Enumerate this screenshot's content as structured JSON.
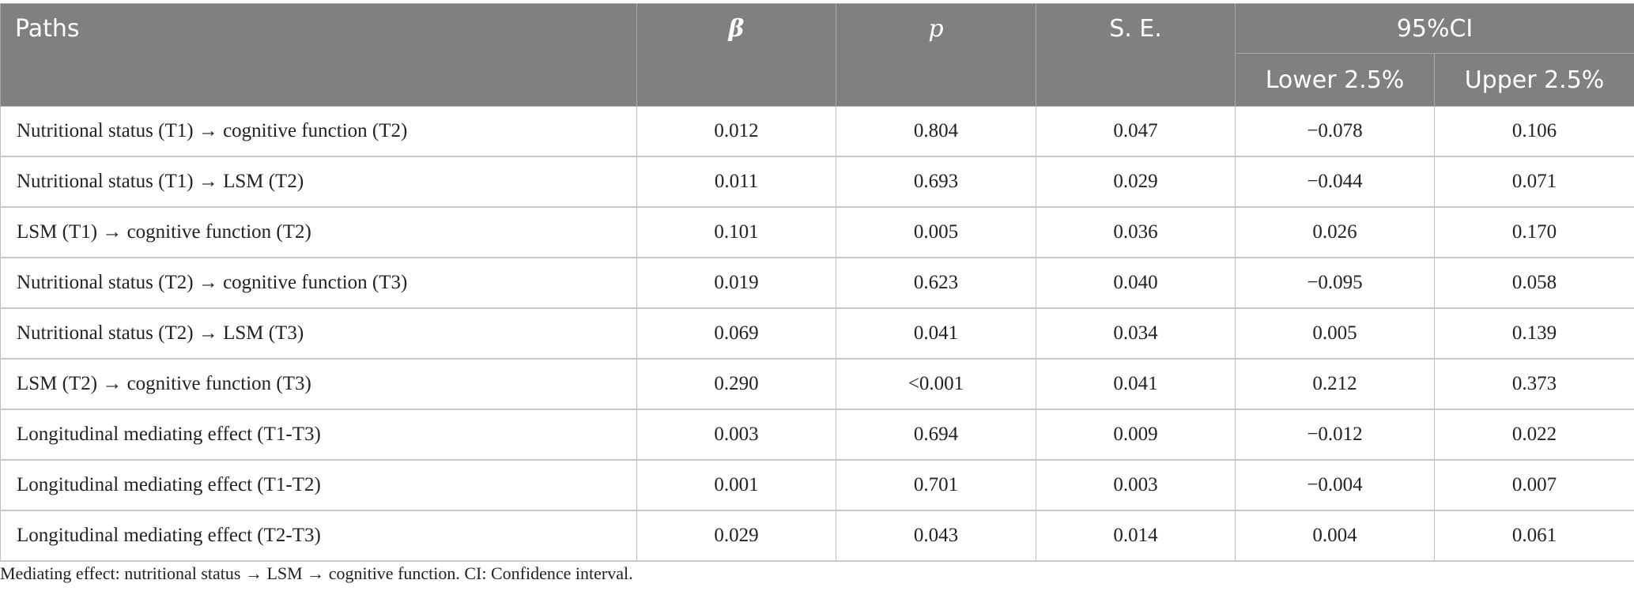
{
  "header": {
    "paths": "Paths",
    "beta": "β",
    "p": "p",
    "se": "S. E.",
    "ci": "95%CI",
    "lower": "Lower 2.5%",
    "upper": "Upper 2.5%"
  },
  "rows": [
    {
      "path": "Nutritional status (T1) → cognitive function (T2)",
      "beta": "0.012",
      "p": "0.804",
      "se": "0.047",
      "lower": "−0.078",
      "upper": "0.106"
    },
    {
      "path": "Nutritional status (T1) → LSM (T2)",
      "beta": "0.011",
      "p": "0.693",
      "se": "0.029",
      "lower": "−0.044",
      "upper": "0.071"
    },
    {
      "path": "LSM (T1) → cognitive function (T2)",
      "beta": "0.101",
      "p": "0.005",
      "se": "0.036",
      "lower": "0.026",
      "upper": "0.170"
    },
    {
      "path": "Nutritional status (T2) → cognitive function (T3)",
      "beta": "0.019",
      "p": "0.623",
      "se": "0.040",
      "lower": "−0.095",
      "upper": "0.058"
    },
    {
      "path": "Nutritional status (T2) → LSM (T3)",
      "beta": "0.069",
      "p": "0.041",
      "se": "0.034",
      "lower": "0.005",
      "upper": "0.139"
    },
    {
      "path": "LSM (T2) → cognitive function (T3)",
      "beta": "0.290",
      "p": "<0.001",
      "se": "0.041",
      "lower": "0.212",
      "upper": "0.373"
    },
    {
      "path": "Longitudinal mediating effect (T1-T3)",
      "beta": "0.003",
      "p": "0.694",
      "se": "0.009",
      "lower": "−0.012",
      "upper": "0.022"
    },
    {
      "path": "Longitudinal mediating effect (T1-T2)",
      "beta": "0.001",
      "p": "0.701",
      "se": "0.003",
      "lower": "−0.004",
      "upper": "0.007"
    },
    {
      "path": "Longitudinal mediating effect (T2-T3)",
      "beta": "0.029",
      "p": "0.043",
      "se": "0.014",
      "lower": "0.004",
      "upper": "0.061"
    }
  ],
  "footnote": "Mediating effect: nutritional status → LSM → cognitive function. CI: Confidence interval."
}
